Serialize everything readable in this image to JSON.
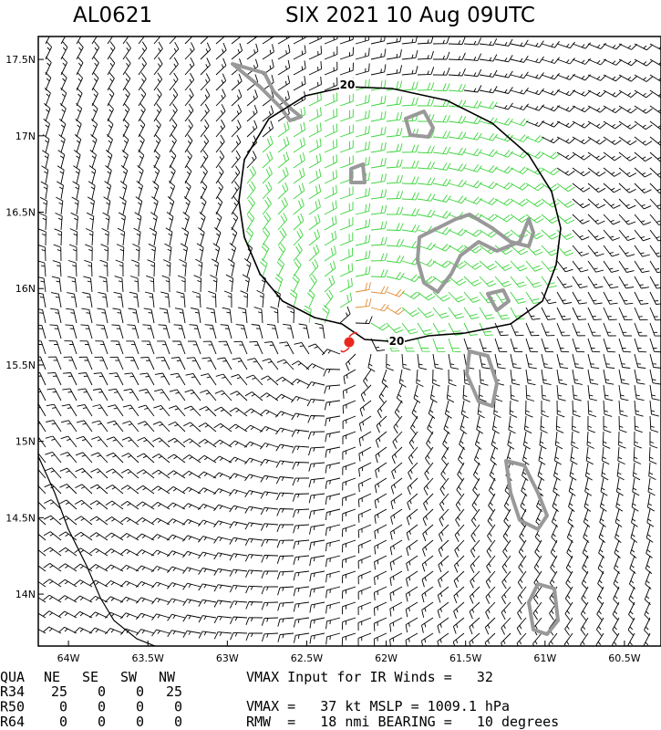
{
  "header": {
    "id": "AL0621",
    "title": "SIX 2021 10 Aug 09UTC"
  },
  "map": {
    "xlim": [
      -64.19,
      -60.27
    ],
    "ylim": [
      13.66,
      17.65
    ],
    "xticks": [
      {
        "value": -64,
        "label": "64W"
      },
      {
        "value": -63.5,
        "label": "63.5W"
      },
      {
        "value": -63,
        "label": "63W"
      },
      {
        "value": -62.5,
        "label": "62.5W"
      },
      {
        "value": -62,
        "label": "62W"
      },
      {
        "value": -61.5,
        "label": "61.5W"
      },
      {
        "value": -61,
        "label": "61W"
      },
      {
        "value": -60.5,
        "label": "60.5W"
      }
    ],
    "yticks": [
      {
        "value": 17.5,
        "label": "17.5N"
      },
      {
        "value": 17,
        "label": "17N"
      },
      {
        "value": 16.5,
        "label": "16.5N"
      },
      {
        "value": 16,
        "label": "16N"
      },
      {
        "value": 15.5,
        "label": "15.5N"
      },
      {
        "value": 15,
        "label": "15N"
      },
      {
        "value": 14.5,
        "label": "14.5N"
      },
      {
        "value": 14,
        "label": "14N"
      }
    ],
    "contour_labels": [
      "20",
      "20"
    ]
  },
  "table": {
    "columns": [
      "QUA",
      "NE",
      "SE",
      "SW",
      "NW"
    ],
    "rows": [
      [
        "R34",
        25,
        0,
        0,
        25
      ],
      [
        "R50",
        0,
        0,
        0,
        0
      ],
      [
        "R64",
        0,
        0,
        0,
        0
      ]
    ]
  },
  "notes": [
    "VMAX Input for IR Winds =   32",
    "VMAX =   37 kt MSLP = 1009.1 hPa",
    "RMW  =   18 nmi BEARING =   10 degrees"
  ]
}
